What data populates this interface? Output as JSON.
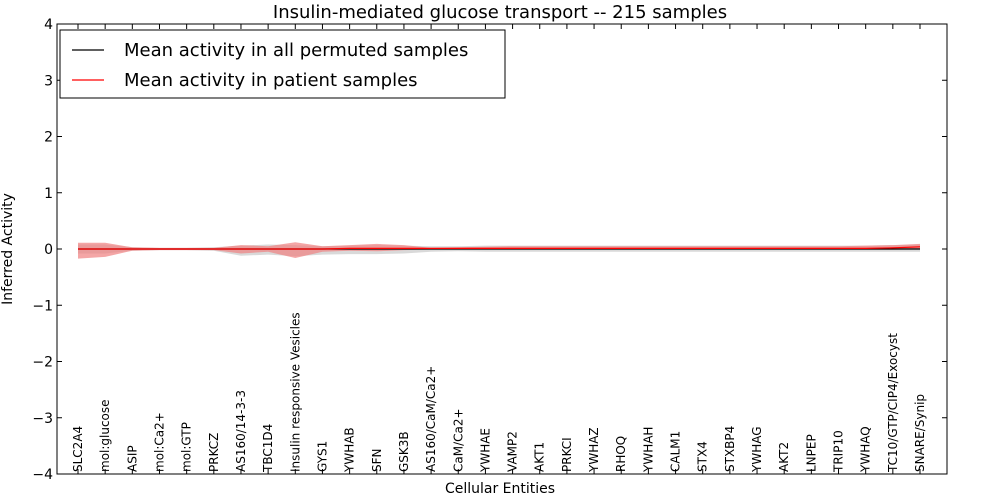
{
  "chart_data": {
    "type": "line",
    "title": "Insulin-mediated glucose transport -- 215 samples",
    "xlabel": "Cellular Entities",
    "ylabel": "Inferred Activity",
    "ylim": [
      -4,
      4
    ],
    "yticks": [
      "−4",
      "−3",
      "−2",
      "−1",
      "0",
      "1",
      "2",
      "3",
      "4"
    ],
    "yticks_values": [
      -4,
      -3,
      -2,
      -1,
      0,
      1,
      2,
      3,
      4
    ],
    "grid": false,
    "legend_position": "top-left",
    "categories": [
      "SLC2A4",
      "mol:glucose",
      "ASIP",
      "mol:Ca2+",
      "mol:GTP",
      "PRKCZ",
      "AS160/14-3-3",
      "TBC1D4",
      "Insulin responsive Vesicles",
      "GYS1",
      "YWHAB",
      "SFN",
      "GSK3B",
      "AS160/CaM/Ca2+",
      "CaM/Ca2+",
      "YWHAE",
      "VAMP2",
      "AKT1",
      "PRKCI",
      "YWHAZ",
      "RHOQ",
      "YWHAH",
      "CALM1",
      "STX4",
      "STXBP4",
      "YWHAG",
      "AKT2",
      "LNPEP",
      "TRIP10",
      "YWHAQ",
      "TC10/GTP/CIP4/Exocyst",
      "SNARE/Synip"
    ],
    "series": [
      {
        "name": "Mean activity in all permuted samples",
        "color": "#000000",
        "band_color": "#bfbfbf",
        "values": [
          0,
          0,
          0,
          0,
          0,
          0,
          0,
          0,
          0,
          0,
          0,
          0,
          0,
          0,
          0,
          0,
          0,
          0,
          0,
          0,
          0,
          0,
          0,
          0,
          0,
          0,
          0,
          0,
          0,
          0,
          0,
          0
        ],
        "lower": [
          -0.08,
          -0.08,
          -0.03,
          -0.02,
          -0.02,
          -0.03,
          -0.12,
          -0.1,
          -0.13,
          -0.1,
          -0.09,
          -0.09,
          -0.08,
          -0.05,
          -0.04,
          -0.05,
          -0.05,
          -0.05,
          -0.05,
          -0.05,
          -0.05,
          -0.05,
          -0.05,
          -0.05,
          -0.05,
          -0.05,
          -0.05,
          -0.05,
          -0.05,
          -0.05,
          -0.05,
          -0.05
        ],
        "upper": [
          0.08,
          0.08,
          0.03,
          0.02,
          0.02,
          0.03,
          0.06,
          0.08,
          0.07,
          0.05,
          0.06,
          0.07,
          0.06,
          0.05,
          0.05,
          0.06,
          0.06,
          0.06,
          0.06,
          0.06,
          0.06,
          0.06,
          0.06,
          0.06,
          0.06,
          0.06,
          0.06,
          0.06,
          0.06,
          0.06,
          0.07,
          0.08
        ]
      },
      {
        "name": "Mean activity in patient samples",
        "color": "#ff0000",
        "band_color": "#f08080",
        "values": [
          0,
          0,
          0,
          0,
          0,
          0,
          0,
          0,
          0,
          0,
          0.01,
          0.01,
          0.01,
          0.01,
          0.01,
          0.01,
          0.01,
          0.01,
          0.01,
          0.01,
          0.01,
          0.01,
          0.01,
          0.01,
          0.01,
          0.01,
          0.01,
          0.01,
          0.01,
          0.01,
          0.02,
          0.04
        ],
        "lower": [
          -0.17,
          -0.14,
          -0.03,
          -0.02,
          -0.02,
          -0.02,
          -0.08,
          -0.05,
          -0.16,
          -0.05,
          -0.03,
          -0.04,
          -0.02,
          -0.01,
          -0.01,
          -0.01,
          -0.01,
          -0.01,
          -0.01,
          -0.01,
          -0.01,
          -0.01,
          -0.01,
          -0.01,
          -0.01,
          -0.01,
          -0.01,
          -0.01,
          -0.01,
          -0.01,
          -0.01,
          0.0
        ],
        "upper": [
          0.11,
          0.11,
          0.03,
          0.02,
          0.02,
          0.02,
          0.07,
          0.05,
          0.12,
          0.05,
          0.07,
          0.09,
          0.07,
          0.02,
          0.03,
          0.04,
          0.05,
          0.05,
          0.05,
          0.05,
          0.05,
          0.05,
          0.05,
          0.05,
          0.05,
          0.05,
          0.05,
          0.05,
          0.05,
          0.06,
          0.07,
          0.09
        ]
      }
    ]
  }
}
